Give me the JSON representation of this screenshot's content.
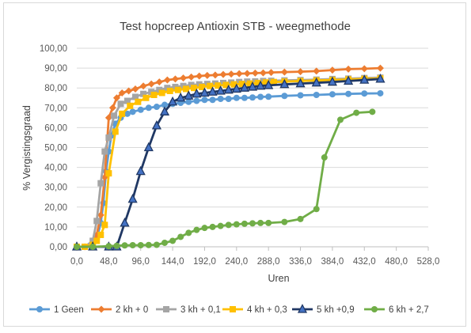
{
  "chart_data": {
    "type": "line",
    "title": "Test hopcreep Antioxin STB - weegmethode",
    "xlabel": "Uren",
    "ylabel": "% Vergistingsgraad",
    "xlim": [
      0,
      528
    ],
    "ylim": [
      0,
      100
    ],
    "x_ticks": [
      "0,0",
      "48,0",
      "96,0",
      "144,0",
      "192,0",
      "240,0",
      "288,0",
      "336,0",
      "384,0",
      "432,0",
      "480,0",
      "528,0"
    ],
    "y_ticks": [
      "0,00",
      "10,00",
      "20,00",
      "30,00",
      "40,00",
      "50,00",
      "60,00",
      "70,00",
      "80,00",
      "90,00",
      "100,00"
    ],
    "grid": "horizontal",
    "legend_position": "bottom",
    "series": [
      {
        "name": "1 Geen",
        "color": "#5b9bd5",
        "marker": "circle",
        "points": [
          [
            0,
            0
          ],
          [
            12,
            0
          ],
          [
            24,
            1
          ],
          [
            30,
            4
          ],
          [
            36,
            12
          ],
          [
            40,
            22
          ],
          [
            44,
            38
          ],
          [
            48,
            48
          ],
          [
            52,
            56
          ],
          [
            58,
            62
          ],
          [
            66,
            65
          ],
          [
            76,
            67
          ],
          [
            84,
            68
          ],
          [
            96,
            69
          ],
          [
            108,
            70
          ],
          [
            120,
            70.5
          ],
          [
            132,
            71.5
          ],
          [
            144,
            72
          ],
          [
            156,
            72.5
          ],
          [
            168,
            73
          ],
          [
            180,
            73.5
          ],
          [
            192,
            74
          ],
          [
            204,
            74
          ],
          [
            216,
            74.5
          ],
          [
            228,
            74.5
          ],
          [
            240,
            75
          ],
          [
            252,
            75
          ],
          [
            264,
            75.2
          ],
          [
            276,
            75.5
          ],
          [
            288,
            75.6
          ],
          [
            312,
            76
          ],
          [
            336,
            76.3
          ],
          [
            360,
            76.5
          ],
          [
            384,
            76.8
          ],
          [
            408,
            77
          ],
          [
            432,
            77.2
          ],
          [
            456,
            77.3
          ]
        ]
      },
      {
        "name": "2 kh + 0",
        "color": "#ed7d31",
        "marker": "diamond",
        "points": [
          [
            0,
            0
          ],
          [
            12,
            0
          ],
          [
            24,
            2
          ],
          [
            30,
            6
          ],
          [
            36,
            16
          ],
          [
            42,
            35
          ],
          [
            48,
            65
          ],
          [
            54,
            70
          ],
          [
            60,
            75
          ],
          [
            68,
            77.5
          ],
          [
            78,
            78.5
          ],
          [
            88,
            79.5
          ],
          [
            100,
            81
          ],
          [
            112,
            82
          ],
          [
            124,
            83
          ],
          [
            136,
            84
          ],
          [
            148,
            84.5
          ],
          [
            160,
            85
          ],
          [
            172,
            85.5
          ],
          [
            184,
            86
          ],
          [
            196,
            86.3
          ],
          [
            208,
            86.5
          ],
          [
            220,
            86.8
          ],
          [
            232,
            87
          ],
          [
            244,
            87.2
          ],
          [
            256,
            87.3
          ],
          [
            268,
            87.5
          ],
          [
            280,
            87.6
          ],
          [
            292,
            87.8
          ],
          [
            312,
            88
          ],
          [
            336,
            88.2
          ],
          [
            360,
            88.5
          ],
          [
            384,
            89
          ],
          [
            408,
            89.5
          ],
          [
            432,
            89.7
          ],
          [
            456,
            90
          ]
        ]
      },
      {
        "name": "3 kh + 0,1",
        "color": "#a5a5a5",
        "marker": "square",
        "points": [
          [
            0,
            0
          ],
          [
            12,
            0
          ],
          [
            24,
            3
          ],
          [
            30,
            13
          ],
          [
            36,
            32
          ],
          [
            42,
            48
          ],
          [
            48,
            55
          ],
          [
            56,
            66
          ],
          [
            66,
            72
          ],
          [
            76,
            73.5
          ],
          [
            88,
            75.5
          ],
          [
            100,
            77
          ],
          [
            112,
            78
          ],
          [
            124,
            79
          ],
          [
            136,
            80
          ],
          [
            148,
            80.5
          ],
          [
            160,
            81
          ],
          [
            172,
            81.5
          ],
          [
            184,
            81.8
          ],
          [
            196,
            82
          ],
          [
            208,
            82.2
          ],
          [
            220,
            82.5
          ],
          [
            232,
            82.7
          ],
          [
            244,
            83
          ],
          [
            256,
            83.2
          ],
          [
            268,
            83.3
          ],
          [
            280,
            83.5
          ],
          [
            292,
            83.6
          ],
          [
            312,
            83.8
          ],
          [
            336,
            84
          ],
          [
            360,
            84.2
          ],
          [
            384,
            84.5
          ],
          [
            408,
            84.7
          ],
          [
            432,
            85
          ],
          [
            456,
            85.2
          ]
        ]
      },
      {
        "name": "4 kh + 0,3",
        "color": "#ffc000",
        "marker": "square",
        "points": [
          [
            0,
            0
          ],
          [
            12,
            0
          ],
          [
            24,
            1
          ],
          [
            30,
            3
          ],
          [
            36,
            6
          ],
          [
            42,
            11
          ],
          [
            48,
            37
          ],
          [
            58,
            58
          ],
          [
            68,
            67
          ],
          [
            80,
            71
          ],
          [
            92,
            73
          ],
          [
            104,
            75
          ],
          [
            116,
            76.5
          ],
          [
            128,
            77.5
          ],
          [
            140,
            78.5
          ],
          [
            152,
            79
          ],
          [
            164,
            79.5
          ],
          [
            176,
            80
          ],
          [
            188,
            80.5
          ],
          [
            200,
            81
          ],
          [
            212,
            81.2
          ],
          [
            224,
            81.5
          ],
          [
            236,
            81.8
          ],
          [
            248,
            82
          ],
          [
            260,
            82.2
          ],
          [
            272,
            82.5
          ],
          [
            284,
            82.8
          ],
          [
            296,
            83
          ],
          [
            312,
            83.2
          ],
          [
            336,
            83.5
          ],
          [
            360,
            83.8
          ],
          [
            384,
            84
          ],
          [
            408,
            84.3
          ],
          [
            432,
            84.6
          ],
          [
            456,
            84.8
          ]
        ]
      },
      {
        "name": "5 kh +0,9",
        "color": "#203864",
        "marker": "triangle",
        "points": [
          [
            0,
            0
          ],
          [
            24,
            0
          ],
          [
            48,
            0
          ],
          [
            60,
            0
          ],
          [
            72,
            12
          ],
          [
            84,
            24
          ],
          [
            96,
            38
          ],
          [
            108,
            50
          ],
          [
            120,
            61
          ],
          [
            132,
            68
          ],
          [
            144,
            73
          ],
          [
            156,
            75
          ],
          [
            168,
            76
          ],
          [
            180,
            77
          ],
          [
            192,
            77.5
          ],
          [
            204,
            78
          ],
          [
            216,
            78.5
          ],
          [
            228,
            79
          ],
          [
            240,
            79.5
          ],
          [
            252,
            80
          ],
          [
            264,
            80.5
          ],
          [
            276,
            81
          ],
          [
            288,
            81.3
          ],
          [
            312,
            81.8
          ],
          [
            336,
            82.2
          ],
          [
            360,
            82.6
          ],
          [
            384,
            83
          ],
          [
            408,
            83.5
          ],
          [
            432,
            84
          ],
          [
            456,
            84.5
          ]
        ]
      },
      {
        "name": "6 kh + 2,7",
        "color": "#70ad47",
        "marker": "circle",
        "points": [
          [
            0,
            0
          ],
          [
            24,
            0
          ],
          [
            48,
            0.3
          ],
          [
            60,
            0.5
          ],
          [
            72,
            0.7
          ],
          [
            84,
            0.8
          ],
          [
            96,
            0.8
          ],
          [
            108,
            0.9
          ],
          [
            120,
            1
          ],
          [
            132,
            2
          ],
          [
            144,
            3
          ],
          [
            156,
            5
          ],
          [
            168,
            7
          ],
          [
            180,
            8.5
          ],
          [
            192,
            9.5
          ],
          [
            204,
            10
          ],
          [
            216,
            10.5
          ],
          [
            228,
            11
          ],
          [
            240,
            11.3
          ],
          [
            252,
            11.6
          ],
          [
            264,
            11.8
          ],
          [
            276,
            12
          ],
          [
            288,
            12
          ],
          [
            312,
            12.5
          ],
          [
            336,
            14
          ],
          [
            360,
            19
          ],
          [
            372,
            45
          ],
          [
            396,
            64
          ],
          [
            420,
            67.5
          ],
          [
            444,
            68
          ]
        ]
      }
    ]
  }
}
